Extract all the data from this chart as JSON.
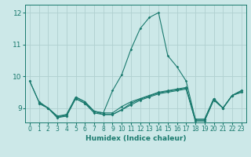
{
  "title": "",
  "xlabel": "Humidex (Indice chaleur)",
  "bg_color": "#cce8e8",
  "line_color": "#1a7a6e",
  "grid_color": "#b0d0d0",
  "xlim": [
    -0.5,
    23.5
  ],
  "ylim": [
    8.55,
    12.25
  ],
  "yticks": [
    9,
    10,
    11,
    12
  ],
  "xticks": [
    0,
    1,
    2,
    3,
    4,
    5,
    6,
    7,
    8,
    9,
    10,
    11,
    12,
    13,
    14,
    15,
    16,
    17,
    18,
    19,
    20,
    21,
    22,
    23
  ],
  "lines": [
    {
      "x": [
        0,
        1,
        2,
        3,
        4,
        5,
        6,
        7,
        8,
        9,
        10,
        11,
        12,
        13,
        14,
        15,
        16,
        17,
        18,
        19,
        20,
        21,
        22,
        23
      ],
      "y": [
        9.85,
        9.2,
        9.0,
        8.75,
        8.75,
        9.35,
        9.2,
        8.9,
        8.85,
        9.55,
        10.05,
        10.85,
        11.5,
        11.85,
        12.0,
        10.65,
        10.3,
        9.85,
        8.65,
        8.65,
        9.3,
        9.0,
        9.4,
        9.55
      ]
    },
    {
      "x": [
        0,
        1,
        2,
        3,
        4,
        5,
        6,
        7,
        8,
        9,
        10,
        11,
        12,
        13,
        14,
        15,
        16,
        17,
        18,
        19,
        20,
        21,
        22,
        23
      ],
      "y": [
        9.85,
        9.2,
        9.0,
        8.75,
        8.8,
        9.35,
        9.2,
        8.9,
        8.85,
        8.85,
        9.05,
        9.2,
        9.3,
        9.4,
        9.5,
        9.55,
        9.6,
        9.65,
        8.65,
        8.65,
        9.3,
        9.0,
        9.4,
        9.55
      ]
    },
    {
      "x": [
        1,
        2,
        3,
        4,
        5,
        6,
        7,
        8,
        9,
        10,
        11,
        12,
        13,
        14,
        15,
        16,
        17,
        18,
        19,
        20,
        21,
        22,
        23
      ],
      "y": [
        9.15,
        9.0,
        8.7,
        8.75,
        9.3,
        9.15,
        8.85,
        8.8,
        8.8,
        8.95,
        9.1,
        9.25,
        9.35,
        9.45,
        9.5,
        9.55,
        9.6,
        8.6,
        8.6,
        9.25,
        9.0,
        9.4,
        9.5
      ]
    },
    {
      "x": [
        1,
        2,
        3,
        4,
        5,
        6,
        7,
        8,
        9,
        10,
        11,
        12,
        13,
        14,
        15,
        16,
        17,
        18,
        19,
        20,
        21,
        22,
        23
      ],
      "y": [
        9.15,
        9.0,
        8.7,
        8.8,
        9.3,
        9.15,
        8.9,
        8.8,
        8.8,
        8.95,
        9.15,
        9.28,
        9.38,
        9.48,
        9.53,
        9.58,
        9.63,
        8.6,
        8.6,
        9.28,
        9.0,
        9.4,
        9.5
      ]
    }
  ]
}
